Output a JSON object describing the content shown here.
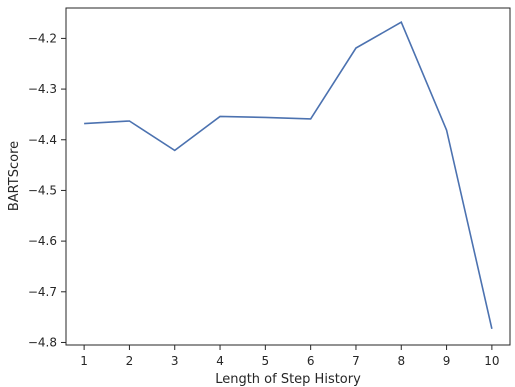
{
  "chart_data": {
    "type": "line",
    "title": "",
    "xlabel": "Length of Step History",
    "ylabel": "BARTScore",
    "x": [
      1,
      2,
      3,
      4,
      5,
      6,
      7,
      8,
      9,
      10
    ],
    "series": [
      {
        "values": [
          -4.368,
          -4.363,
          -4.421,
          -4.354,
          -4.356,
          -4.359,
          -4.219,
          -4.168,
          -4.381,
          -4.773
        ],
        "color": "#4c72b0"
      }
    ],
    "xticks": [
      "1",
      "2",
      "3",
      "4",
      "5",
      "6",
      "7",
      "8",
      "9",
      "10"
    ],
    "yticks": [
      "-4.8",
      "-4.7",
      "-4.6",
      "-4.5",
      "-4.4",
      "-4.3",
      "-4.2"
    ],
    "xlim": [
      0.6,
      10.4
    ],
    "ylim": [
      -4.805,
      -4.14
    ],
    "grid": false,
    "legend": "none",
    "spine_color": "#262626"
  }
}
